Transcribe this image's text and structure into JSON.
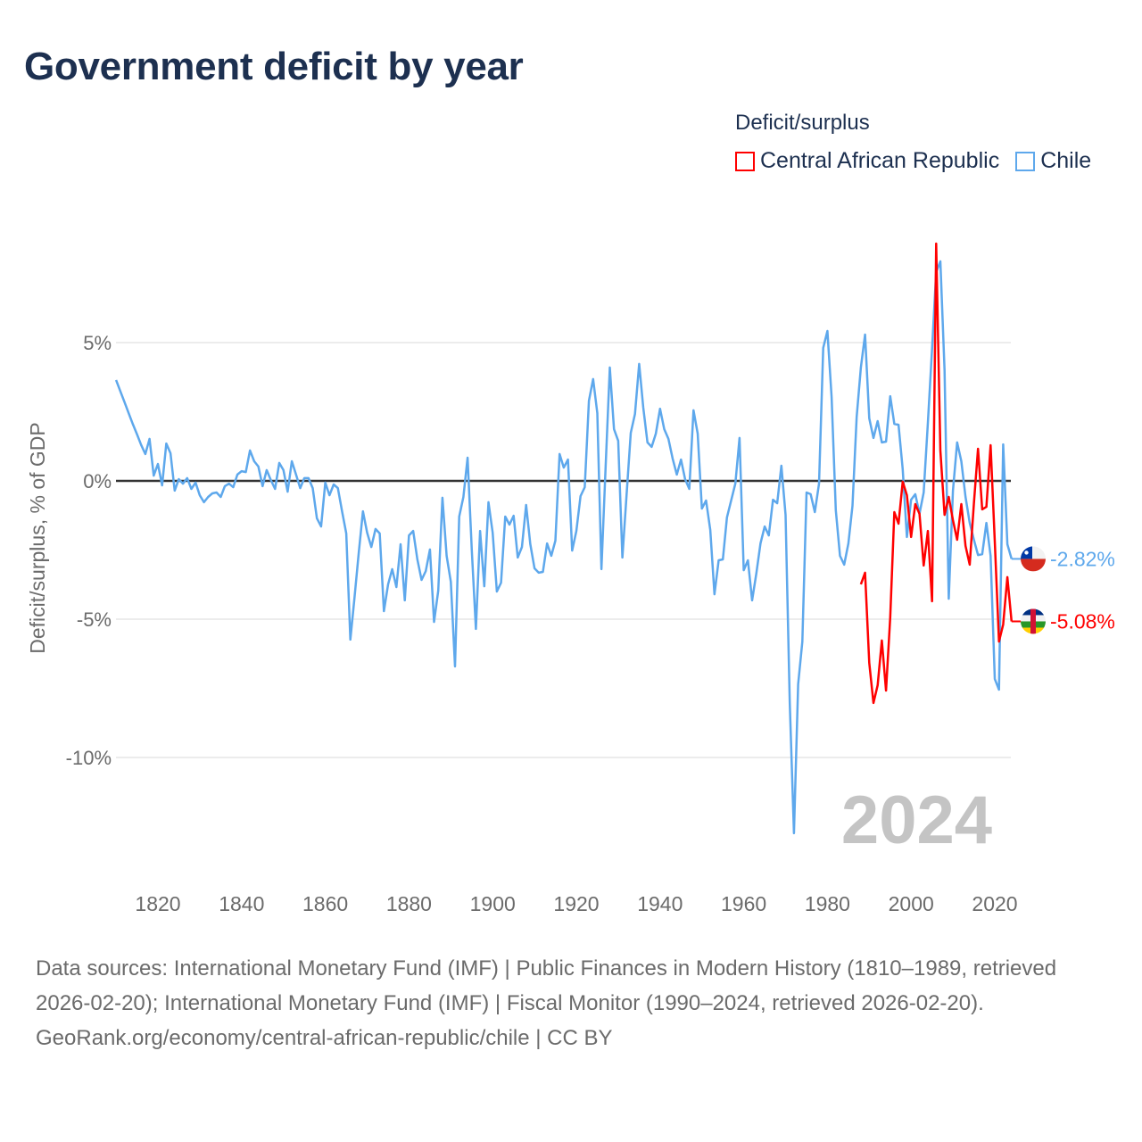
{
  "title": "Government deficit by year",
  "legend": {
    "title": "Deficit/surplus",
    "items": [
      {
        "label": "Central African Republic",
        "color": "#ff0000"
      },
      {
        "label": "Chile",
        "color": "#5ea8ec"
      }
    ]
  },
  "footer": {
    "sources": "Data sources: International Monetary Fund (IMF) | Public Finances in Modern History (1810–1989, retrieved 2026-02-20); International Monetary Fund (IMF) | Fiscal Monitor (1990–2024, retrieved 2026-02-20).",
    "attribution": "GeoRank.org/economy/central-african-republic/chile | CC BY"
  },
  "chart_data": {
    "type": "line",
    "title": "Government deficit by year",
    "ylabel": "Deficit/surplus, % of GDP",
    "xlabel": "",
    "year_label": "2024",
    "xlim": [
      1810,
      2024
    ],
    "ylim": [
      -13,
      9
    ],
    "x_ticks": [
      1820,
      1840,
      1860,
      1880,
      1900,
      1920,
      1940,
      1960,
      1980,
      2000,
      2020
    ],
    "x_tick_labels": [
      "1820",
      "1840",
      "1860",
      "1880",
      "1900",
      "1920",
      "1940",
      "1960",
      "1980",
      "2000",
      "2020"
    ],
    "y_ticks": [
      5,
      0,
      -5,
      -10
    ],
    "y_tick_labels": [
      "5%",
      "0%",
      "-5%",
      "-10%"
    ],
    "grid": true,
    "legend_position": "top-right",
    "series": [
      {
        "name": "Chile",
        "color": "#5ea8ec",
        "end_label": "-2.82%",
        "flag": "chile-flag",
        "x": [
          1810,
          1811,
          1812,
          1813,
          1814,
          1815,
          1816,
          1817,
          1818,
          1819,
          1820,
          1821,
          1822,
          1823,
          1824,
          1825,
          1826,
          1827,
          1828,
          1829,
          1830,
          1831,
          1832,
          1833,
          1834,
          1835,
          1836,
          1837,
          1838,
          1839,
          1840,
          1841,
          1842,
          1843,
          1844,
          1845,
          1846,
          1847,
          1848,
          1849,
          1850,
          1851,
          1852,
          1853,
          1854,
          1855,
          1856,
          1857,
          1858,
          1859,
          1860,
          1861,
          1862,
          1863,
          1864,
          1865,
          1866,
          1867,
          1868,
          1869,
          1870,
          1871,
          1872,
          1873,
          1874,
          1875,
          1876,
          1877,
          1878,
          1879,
          1880,
          1881,
          1882,
          1883,
          1884,
          1885,
          1886,
          1887,
          1888,
          1889,
          1890,
          1891,
          1892,
          1893,
          1894,
          1895,
          1896,
          1897,
          1898,
          1899,
          1900,
          1901,
          1902,
          1903,
          1904,
          1905,
          1906,
          1907,
          1908,
          1909,
          1910,
          1911,
          1912,
          1913,
          1914,
          1915,
          1916,
          1917,
          1918,
          1919,
          1920,
          1921,
          1922,
          1923,
          1924,
          1925,
          1926,
          1927,
          1928,
          1929,
          1930,
          1931,
          1932,
          1933,
          1934,
          1935,
          1936,
          1937,
          1938,
          1939,
          1940,
          1941,
          1942,
          1943,
          1944,
          1945,
          1946,
          1947,
          1948,
          1949,
          1950,
          1951,
          1952,
          1953,
          1954,
          1955,
          1956,
          1957,
          1958,
          1959,
          1960,
          1961,
          1962,
          1963,
          1964,
          1965,
          1966,
          1967,
          1968,
          1969,
          1970,
          1971,
          1972,
          1973,
          1974,
          1975,
          1976,
          1977,
          1978,
          1979,
          1980,
          1981,
          1982,
          1983,
          1984,
          1985,
          1986,
          1987,
          1988,
          1989,
          1990,
          1991,
          1992,
          1993,
          1994,
          1995,
          1996,
          1997,
          1998,
          1999,
          2000,
          2001,
          2002,
          2003,
          2004,
          2005,
          2006,
          2007,
          2008,
          2009,
          2010,
          2011,
          2012,
          2013,
          2014,
          2015,
          2016,
          2017,
          2018,
          2019,
          2020,
          2021,
          2022,
          2023,
          2024
        ],
        "values": [
          3.65,
          3.25,
          2.85,
          2.45,
          2.05,
          1.68,
          1.3,
          0.97,
          1.52,
          0.19,
          0.61,
          -0.16,
          1.35,
          1.0,
          -0.35,
          0.06,
          -0.1,
          0.1,
          -0.29,
          -0.06,
          -0.52,
          -0.77,
          -0.58,
          -0.45,
          -0.42,
          -0.58,
          -0.19,
          -0.1,
          -0.23,
          0.23,
          0.35,
          0.32,
          1.1,
          0.71,
          0.52,
          -0.19,
          0.39,
          0.03,
          -0.29,
          0.65,
          0.39,
          -0.39,
          0.71,
          0.23,
          -0.26,
          0.1,
          0.1,
          -0.26,
          -1.35,
          -1.65,
          -0.06,
          -0.52,
          -0.13,
          -0.26,
          -1.1,
          -1.9,
          -5.74,
          -4.2,
          -2.6,
          -1.1,
          -1.87,
          -2.39,
          -1.74,
          -1.9,
          -4.71,
          -3.74,
          -3.19,
          -3.84,
          -2.29,
          -4.32,
          -1.97,
          -1.81,
          -2.84,
          -3.58,
          -3.26,
          -2.48,
          -5.1,
          -3.97,
          -0.61,
          -2.71,
          -3.65,
          -6.71,
          -1.29,
          -0.58,
          0.84,
          -2.5,
          -5.35,
          -1.81,
          -3.81,
          -0.77,
          -1.87,
          -4.0,
          -3.68,
          -1.29,
          -1.58,
          -1.26,
          -2.77,
          -2.39,
          -0.87,
          -2.29,
          -3.16,
          -3.32,
          -3.29,
          -2.26,
          -2.71,
          -2.16,
          0.97,
          0.48,
          0.77,
          -2.52,
          -1.81,
          -0.55,
          -0.23,
          2.9,
          3.68,
          2.45,
          -3.19,
          0.5,
          4.1,
          1.87,
          1.45,
          -2.77,
          -0.5,
          1.74,
          2.42,
          4.23,
          2.65,
          1.39,
          1.23,
          1.71,
          2.61,
          1.87,
          1.52,
          0.81,
          0.23,
          0.77,
          0.06,
          -0.29,
          2.55,
          1.71,
          -1.0,
          -0.71,
          -1.77,
          -4.1,
          -2.87,
          -2.84,
          -1.32,
          -0.71,
          -0.1,
          1.55,
          -3.23,
          -2.87,
          -4.32,
          -3.35,
          -2.26,
          -1.65,
          -1.97,
          -0.68,
          -0.81,
          0.55,
          -1.23,
          -8.03,
          -12.74,
          -7.35,
          -5.81,
          -0.42,
          -0.48,
          -1.13,
          -0.1,
          4.81,
          5.42,
          3.03,
          -1.06,
          -2.71,
          -3.03,
          -2.26,
          -0.9,
          2.32,
          4.1,
          5.29,
          2.26,
          1.55,
          2.16,
          1.39,
          1.42,
          3.06,
          2.06,
          2.03,
          0.42,
          -2.03,
          -0.68,
          -0.48,
          -1.19,
          -0.42,
          2.1,
          4.77,
          7.55,
          7.94,
          4.0,
          -4.26,
          -0.35,
          1.39,
          0.71,
          -0.58,
          -1.52,
          -2.13,
          -2.68,
          -2.65,
          -1.52,
          -2.71,
          -7.16,
          -7.55,
          1.32,
          -2.29,
          -2.82
        ]
      },
      {
        "name": "Central African Republic",
        "color": "#ff0000",
        "end_label": "-5.08%",
        "flag": "central-african-republic-flag",
        "x": [
          1988,
          1989,
          1990,
          1991,
          1992,
          1993,
          1994,
          1995,
          1996,
          1997,
          1998,
          1999,
          2000,
          2001,
          2002,
          2003,
          2004,
          2005,
          2006,
          2007,
          2008,
          2009,
          2010,
          2011,
          2012,
          2013,
          2014,
          2015,
          2016,
          2017,
          2018,
          2019,
          2020,
          2021,
          2022,
          2023,
          2024
        ],
        "values": [
          -3.74,
          -3.32,
          -6.58,
          -8.03,
          -7.39,
          -5.77,
          -7.58,
          -4.94,
          -1.13,
          -1.55,
          -0.03,
          -0.52,
          -2.03,
          -0.84,
          -1.19,
          -3.06,
          -1.81,
          -4.35,
          8.58,
          1.1,
          -1.23,
          -0.58,
          -1.42,
          -2.13,
          -0.84,
          -2.35,
          -3.03,
          -0.81,
          1.16,
          -1.03,
          -0.94,
          1.29,
          -2.19,
          -5.81,
          -5.19,
          -3.48,
          -5.08
        ]
      }
    ]
  }
}
